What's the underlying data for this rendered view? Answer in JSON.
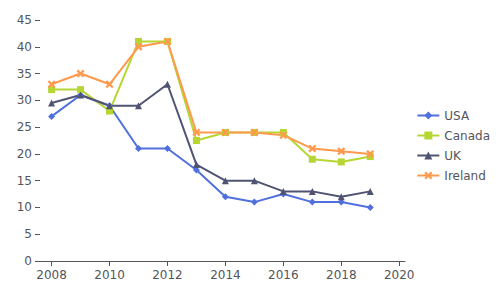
{
  "chart_data": {
    "type": "line",
    "x": [
      2008,
      2009,
      2010,
      2011,
      2012,
      2013,
      2014,
      2015,
      2016,
      2017,
      2018,
      2019
    ],
    "series": [
      {
        "name": "USA",
        "marker": "diamond",
        "values": [
          27,
          31,
          29,
          21,
          21,
          17,
          12,
          11,
          12.5,
          11,
          11,
          10
        ]
      },
      {
        "name": "Canada",
        "marker": "square",
        "values": [
          32,
          32,
          28,
          41,
          41,
          22.5,
          24,
          24,
          24,
          19,
          18.5,
          19.5
        ]
      },
      {
        "name": "UK",
        "marker": "triangle",
        "values": [
          29.5,
          31,
          29,
          29,
          33,
          18,
          15,
          15,
          13,
          13,
          12,
          13
        ]
      },
      {
        "name": "Ireland",
        "marker": "x",
        "values": [
          33,
          35,
          33,
          40,
          41,
          24,
          24,
          24,
          23.5,
          21,
          20.5,
          20
        ]
      }
    ],
    "xlim": [
      2007.6,
      2020.2
    ],
    "xticks": [
      2008,
      2010,
      2012,
      2014,
      2016,
      2018,
      2020
    ],
    "ylim": [
      0,
      45
    ],
    "yticks": [
      0,
      5,
      10,
      15,
      20,
      25,
      30,
      35,
      40,
      45
    ],
    "grid": false,
    "legend": "right"
  }
}
